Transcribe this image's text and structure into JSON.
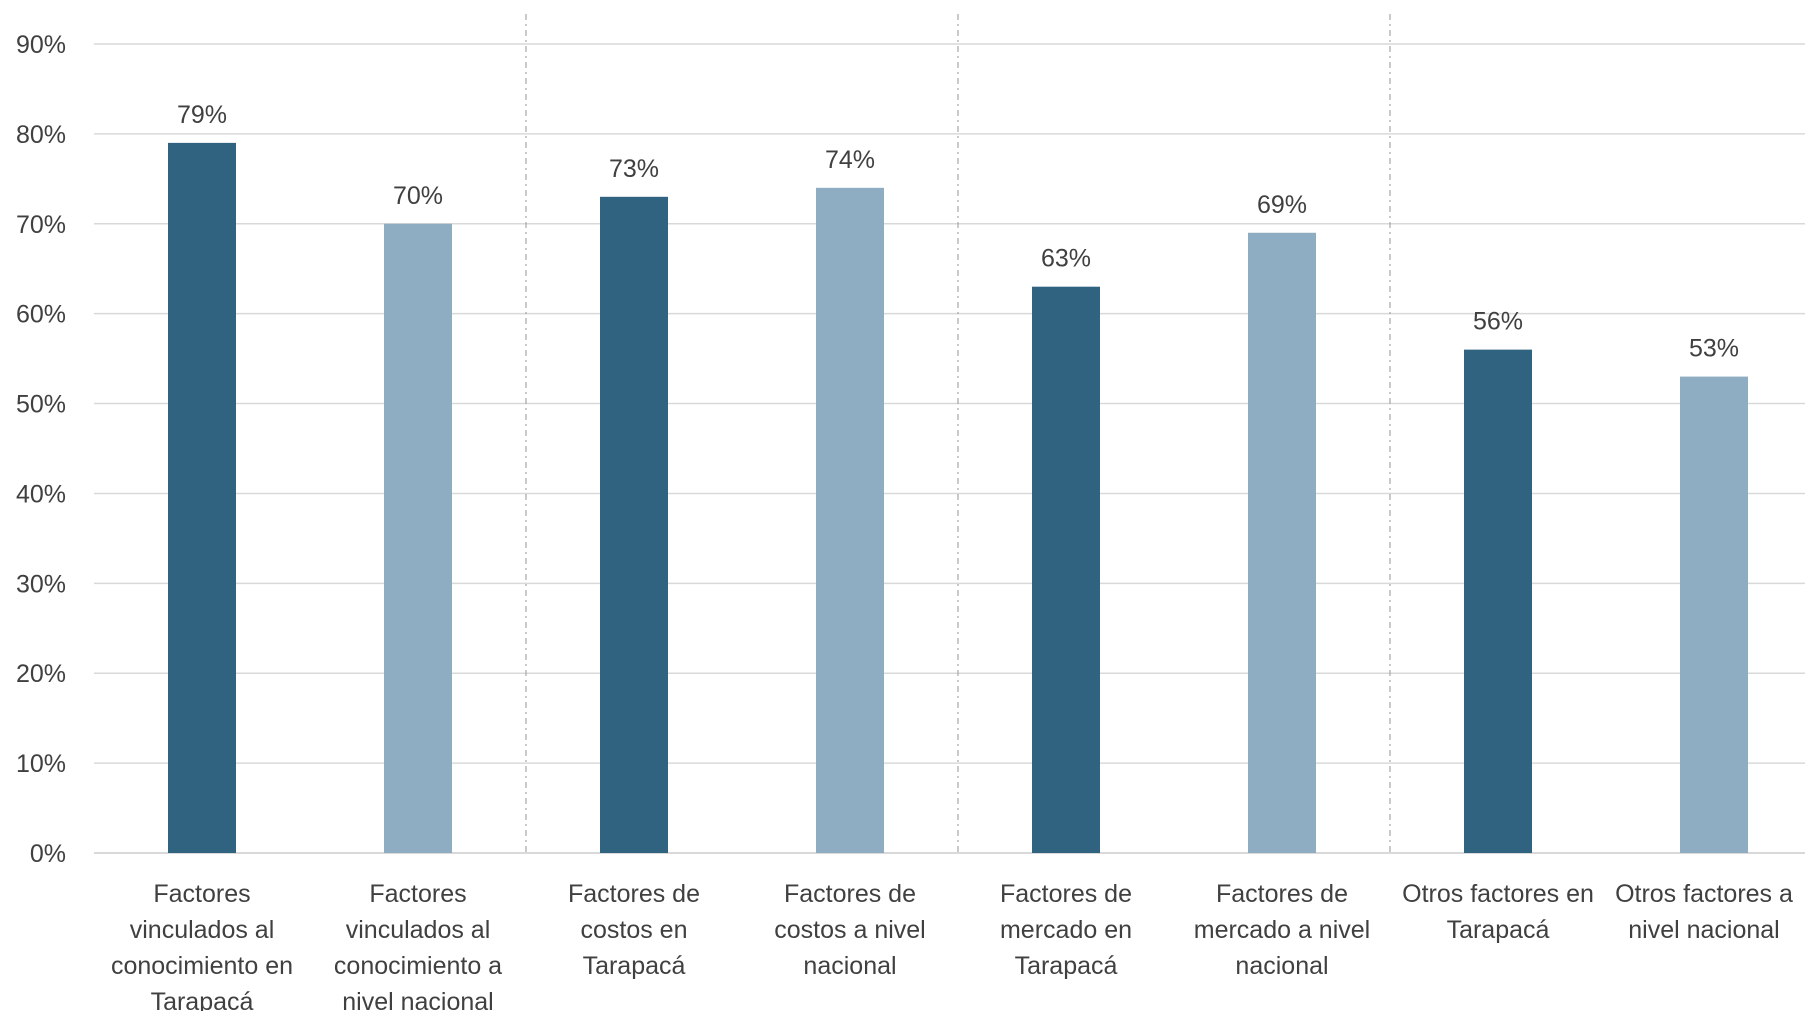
{
  "chart_data": {
    "type": "bar",
    "categories": [
      [
        "Factores",
        "vinculados al",
        "conocimiento en",
        "Tarapacá"
      ],
      [
        "Factores",
        "vinculados al",
        "conocimiento a",
        "nivel nacional"
      ],
      [
        "Factores de",
        "costos en",
        "Tarapacá"
      ],
      [
        "Factores de",
        "costos a nivel",
        "nacional"
      ],
      [
        "Factores de",
        "mercado en",
        "Tarapacá"
      ],
      [
        "Factores de",
        "mercado a nivel",
        "nacional"
      ],
      [
        "Otros factores en",
        "Tarapacá"
      ],
      [
        "Otros factores a",
        "nivel nacional"
      ]
    ],
    "values": [
      79,
      70,
      73,
      74,
      63,
      69,
      56,
      53
    ],
    "data_labels": [
      "79%",
      "70%",
      "73%",
      "74%",
      "63%",
      "69%",
      "56%",
      "53%"
    ],
    "ylim": [
      0,
      90
    ],
    "yticks": [
      "0%",
      "10%",
      "20%",
      "30%",
      "40%",
      "50%",
      "60%",
      "70%",
      "80%",
      "90%"
    ],
    "grid": true,
    "group_separators": true,
    "colors": {
      "regional": "#30637f",
      "national": "#8fadc2",
      "grid": "#d9d9d9",
      "separator": "#a6a6a6",
      "text": "#404040"
    },
    "bar_color_keys": [
      "regional",
      "national",
      "regional",
      "national",
      "regional",
      "national",
      "regional",
      "national"
    ]
  }
}
